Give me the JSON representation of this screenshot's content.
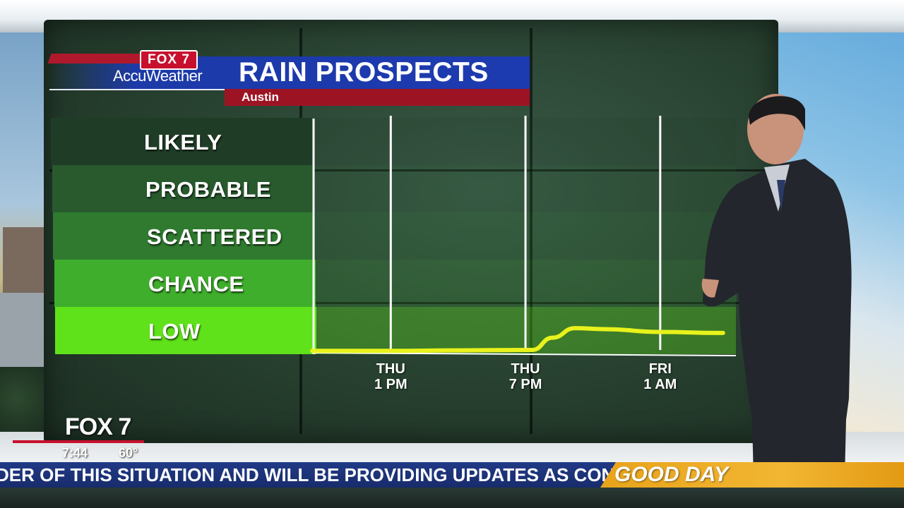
{
  "header": {
    "network_logo": "FOX 7",
    "brand": "AccuWeather",
    "title": "RAIN PROSPECTS",
    "location": "Austin"
  },
  "chart_data": {
    "type": "line",
    "title": "RAIN PROSPECTS",
    "subtitle": "Austin",
    "categories": [
      "LIKELY",
      "PROBABLE",
      "SCATTERED",
      "CHANCE",
      "LOW"
    ],
    "y_scale": "categorical",
    "x_ticks": [
      {
        "label_top": "THU",
        "label_bottom": "1 PM",
        "hour": 13
      },
      {
        "label_top": "THU",
        "label_bottom": "7 PM",
        "hour": 19
      },
      {
        "label_top": "FRI",
        "label_bottom": "1 AM",
        "hour": 25
      }
    ],
    "x_range": [
      9.5,
      29
    ],
    "y_range": [
      0,
      5
    ],
    "series": [
      {
        "color": "#e8f21c",
        "points": [
          {
            "hour": 9.5,
            "value": 0.07
          },
          {
            "hour": 13,
            "value": 0.07
          },
          {
            "hour": 16,
            "value": 0.08
          },
          {
            "hour": 19,
            "value": 0.09
          },
          {
            "hour": 19.3,
            "value": 0.09
          },
          {
            "hour": 20.2,
            "value": 0.35
          },
          {
            "hour": 21.2,
            "value": 0.55
          },
          {
            "hour": 22.5,
            "value": 0.53
          },
          {
            "hour": 25,
            "value": 0.47
          },
          {
            "hour": 27.8,
            "value": 0.45
          }
        ]
      }
    ],
    "band_colors": [
      "#1f3d26",
      "#285a2d",
      "#2f7a2f",
      "#3fae2c",
      "#5fe21a"
    ],
    "grid": true
  },
  "lower_third": {
    "logo": "FOX 7",
    "time": "7:44",
    "temperature": "60°",
    "ticker": "DER OF THIS SITUATION AND WILL BE PROVIDING UPDATES AS COND",
    "show_name": "GOOD DAY"
  }
}
